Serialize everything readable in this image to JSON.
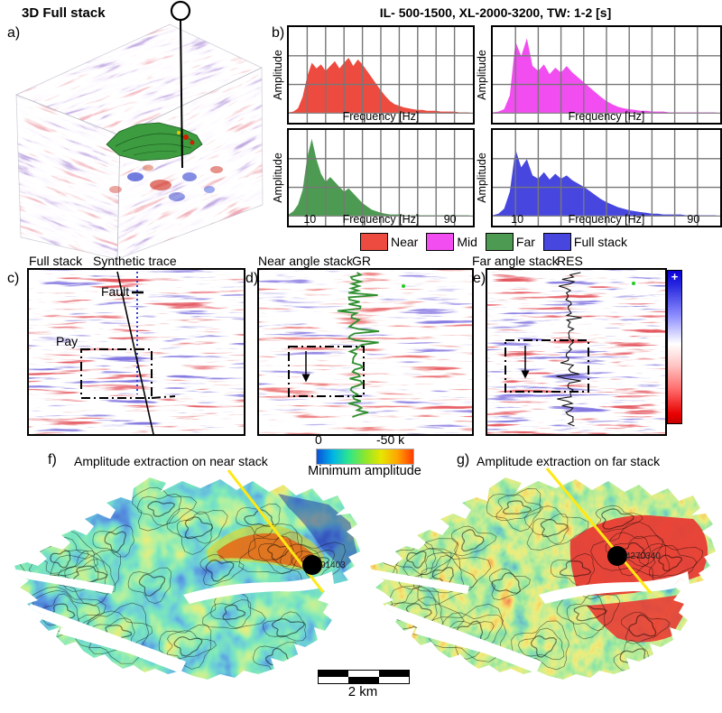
{
  "figure": {
    "panel_a": {
      "label": "a)",
      "title": "3D Full stack"
    },
    "panel_b": {
      "label": "b)",
      "title": "IL- 500-1500, XL-2000-3200, TW: 1-2 [s]",
      "ylabel": "Amplitude",
      "xlabel": "Frequency [Hz]",
      "tick_low": "10",
      "tick_high": "90"
    },
    "legend": [
      {
        "label": "Near",
        "color": "#ee4b40"
      },
      {
        "label": "Mid",
        "color": "#f14df0"
      },
      {
        "label": "Far",
        "color": "#4d9b52"
      },
      {
        "label": "Full stack",
        "color": "#4747df"
      }
    ],
    "panel_c": {
      "label": "c)",
      "title": "Full stack",
      "annotations": {
        "synthetic": "Synthetic trace",
        "fault": "Fault",
        "pay": "Pay"
      }
    },
    "panel_d": {
      "label": "d)",
      "title": "Near angle stack",
      "log": "GR"
    },
    "panel_e": {
      "label": "e)",
      "title": "Far angle stack",
      "log": "RES",
      "colorbar_plus": "+"
    },
    "amp_colorbar": {
      "min": "0",
      "max": "-50 k",
      "title": "Minimum amplitude"
    },
    "panel_f": {
      "label": "f)",
      "title": "Amplitude extraction on near stack",
      "well": "01403"
    },
    "panel_g": {
      "label": "g)",
      "title": "Amplitude extraction on far stack",
      "well": "4270340"
    },
    "scalebar_label": "2 km"
  },
  "chart_data": {
    "type": "area",
    "title": "IL- 500-1500, XL-2000-3200, TW: 1-2 [s]",
    "xlabel": "Frequency [Hz]",
    "ylabel": "Amplitude",
    "xlim": [
      0,
      100
    ],
    "x_ticks": [
      10,
      90
    ],
    "grid": true,
    "layout": "2x2 panels: Near top-left, Mid top-right, Far bottom-left, Full stack bottom-right",
    "x_hz": [
      0,
      2.5,
      5,
      7.5,
      10,
      12.5,
      15,
      17.5,
      20,
      22.5,
      25,
      27.5,
      30,
      32.5,
      35,
      37.5,
      40,
      42.5,
      45,
      47.5,
      50,
      52.5,
      55,
      57.5,
      60,
      62.5,
      65,
      67.5,
      70,
      72.5,
      75,
      77.5,
      80,
      82.5,
      85,
      87.5,
      90,
      92.5,
      95,
      97.5
    ],
    "series": [
      {
        "name": "Near",
        "color": "#ee4b40",
        "values": [
          0.01,
          0.02,
          0.06,
          0.2,
          0.45,
          0.62,
          0.55,
          0.6,
          0.52,
          0.58,
          0.64,
          0.55,
          0.62,
          0.68,
          0.58,
          0.66,
          0.6,
          0.52,
          0.44,
          0.36,
          0.28,
          0.21,
          0.15,
          0.11,
          0.09,
          0.07,
          0.06,
          0.05,
          0.04,
          0.04,
          0.03,
          0.03,
          0.03,
          0.02,
          0.02,
          0.02,
          0.02,
          0.01,
          0.01,
          0.01
        ]
      },
      {
        "name": "Mid",
        "color": "#f14df0",
        "values": [
          0.01,
          0.02,
          0.05,
          0.22,
          0.88,
          0.7,
          0.92,
          0.58,
          0.52,
          0.6,
          0.48,
          0.56,
          0.5,
          0.58,
          0.5,
          0.44,
          0.38,
          0.32,
          0.26,
          0.2,
          0.15,
          0.11,
          0.08,
          0.06,
          0.05,
          0.04,
          0.03,
          0.03,
          0.02,
          0.02,
          0.02,
          0.01,
          0.01,
          0.01,
          0.01,
          0.01,
          0.01,
          0.01,
          0.01,
          0.01
        ]
      },
      {
        "name": "Far",
        "color": "#4d9b52",
        "values": [
          0.02,
          0.06,
          0.14,
          0.32,
          0.72,
          0.95,
          0.7,
          0.52,
          0.42,
          0.48,
          0.42,
          0.36,
          0.3,
          0.34,
          0.28,
          0.22,
          0.16,
          0.12,
          0.08,
          0.06,
          0.04,
          0.03,
          0.02,
          0.02,
          0.02,
          0.01,
          0.01,
          0.01,
          0.01,
          0.01,
          0.01,
          0.01,
          0.01,
          0.01,
          0.01,
          0.01,
          0.01,
          0.01,
          0.01,
          0.01
        ]
      },
      {
        "name": "Full stack",
        "color": "#4747df",
        "values": [
          0.01,
          0.03,
          0.09,
          0.3,
          0.82,
          0.6,
          0.7,
          0.5,
          0.46,
          0.54,
          0.45,
          0.52,
          0.46,
          0.5,
          0.44,
          0.4,
          0.36,
          0.31,
          0.26,
          0.21,
          0.17,
          0.14,
          0.11,
          0.09,
          0.07,
          0.06,
          0.05,
          0.04,
          0.03,
          0.03,
          0.02,
          0.02,
          0.02,
          0.02,
          0.01,
          0.01,
          0.01,
          0.01,
          0.01,
          0.01
        ]
      }
    ],
    "amplitude_map_colorbar": {
      "min_label": "0",
      "max_label": "-50 k",
      "title": "Minimum amplitude"
    }
  }
}
